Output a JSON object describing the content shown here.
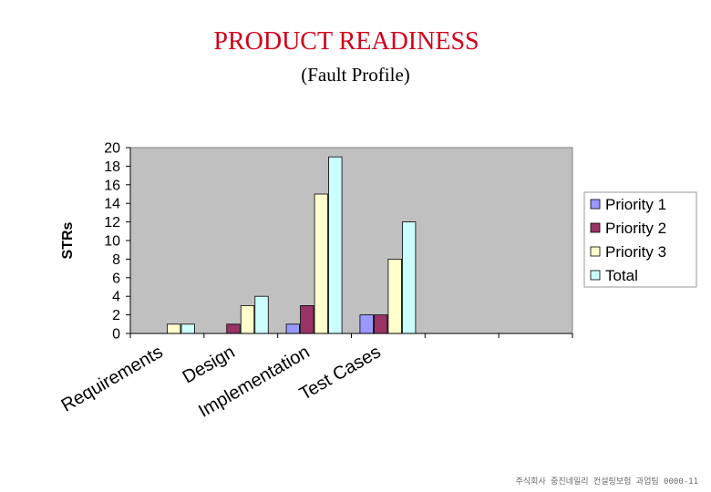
{
  "title": "PRODUCT READINESS",
  "subtitle": "(Fault Profile)",
  "footer": "주식회사 중진네일리 컨설링보험 과업팀 0000-11",
  "colors": {
    "title": "#d0021b",
    "plot_background": "#c0c0c0",
    "priority1": "#9999ff",
    "priority2": "#993366",
    "priority3": "#ffffcc",
    "total": "#ccffff"
  },
  "chart_data": {
    "type": "bar",
    "categories": [
      "Requirements",
      "Design",
      "Implementation",
      "Test Cases",
      "",
      ""
    ],
    "series": [
      {
        "name": "Priority 1",
        "values": [
          0,
          0,
          1,
          2,
          0,
          0
        ]
      },
      {
        "name": "Priority 2",
        "values": [
          0,
          1,
          3,
          2,
          0,
          0
        ]
      },
      {
        "name": "Priority 3",
        "values": [
          1,
          3,
          15,
          8,
          0,
          0
        ]
      },
      {
        "name": "Total",
        "values": [
          1,
          4,
          19,
          12,
          0,
          0
        ]
      }
    ],
    "ylabel": "STRs",
    "xlabel": "",
    "ylim": [
      0,
      20
    ],
    "yticks": [
      0,
      2,
      4,
      6,
      8,
      10,
      12,
      14,
      16,
      18,
      20
    ],
    "grid": false,
    "legend": "right"
  }
}
